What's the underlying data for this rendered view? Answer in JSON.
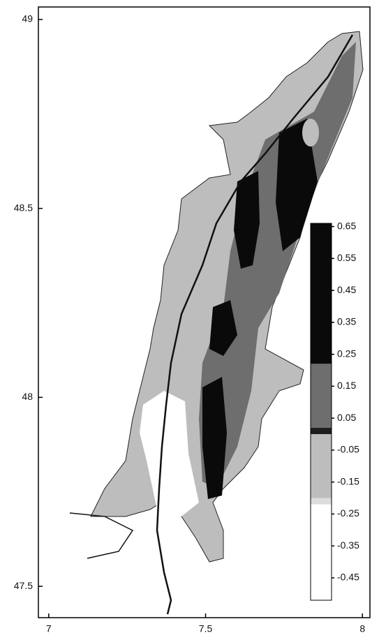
{
  "chart_data": {
    "type": "map",
    "xlim": [
      6.967,
      8.024
    ],
    "xticks": [
      7,
      7.5,
      8
    ],
    "ylim": [
      47.417,
      49.033
    ],
    "yticks": [
      47.5,
      48,
      48.5,
      49
    ],
    "colorbar": {
      "lim": [
        -0.52,
        0.66
      ],
      "ticks": [
        0.65,
        0.55,
        0.45,
        0.35,
        0.25,
        0.15,
        0.05,
        -0.05,
        -0.15,
        -0.25,
        -0.35,
        -0.45
      ],
      "bands": [
        {
          "from": 0.22,
          "to": 0.66,
          "color": "#0a0a0a"
        },
        {
          "from": 0.02,
          "to": 0.22,
          "color": "#6e6e6e"
        },
        {
          "from": 0.0,
          "to": 0.02,
          "color": "#1e1e1e"
        },
        {
          "from": -0.2,
          "to": 0.0,
          "color": "#bdbdbd"
        },
        {
          "from": -0.22,
          "to": -0.2,
          "color": "#dcdcdc"
        },
        {
          "from": -0.52,
          "to": -0.22,
          "color": "#ffffff"
        }
      ]
    }
  }
}
